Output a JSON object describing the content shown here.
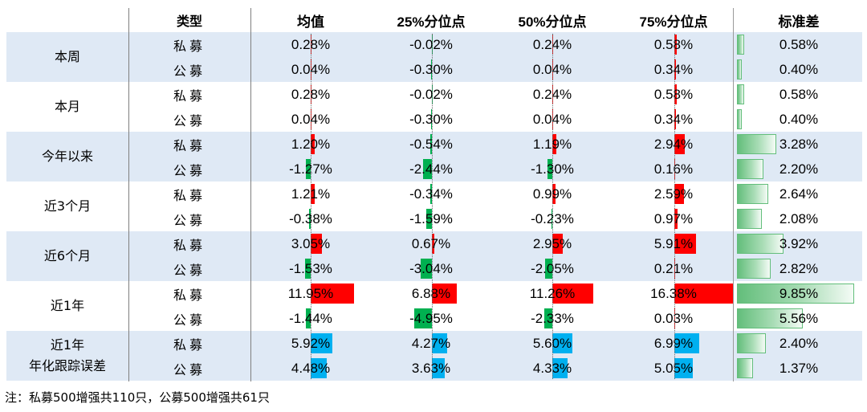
{
  "headers": {
    "type": "类型",
    "mean": "均值",
    "p25": "25%分位点",
    "p50": "50%分位点",
    "p75": "75%分位点",
    "std": "标准差"
  },
  "groups": [
    {
      "period": [
        "本周"
      ],
      "rows": [
        {
          "fund": "私募",
          "mean": "0.28%",
          "p25": "-0.02%",
          "p50": "0.24%",
          "p75": "0.58%",
          "std": "0.58%"
        },
        {
          "fund": "公募",
          "mean": "0.04%",
          "p25": "-0.30%",
          "p50": "0.04%",
          "p75": "0.34%",
          "std": "0.40%"
        }
      ]
    },
    {
      "period": [
        "本月"
      ],
      "rows": [
        {
          "fund": "私募",
          "mean": "0.28%",
          "p25": "-0.02%",
          "p50": "0.24%",
          "p75": "0.58%",
          "std": "0.58%"
        },
        {
          "fund": "公募",
          "mean": "0.04%",
          "p25": "-0.30%",
          "p50": "0.04%",
          "p75": "0.34%",
          "std": "0.40%"
        }
      ]
    },
    {
      "period": [
        "今年以来"
      ],
      "rows": [
        {
          "fund": "私募",
          "mean": "1.20%",
          "p25": "-0.54%",
          "p50": "1.19%",
          "p75": "2.94%",
          "std": "3.28%"
        },
        {
          "fund": "公募",
          "mean": "-1.27%",
          "p25": "-2.44%",
          "p50": "-1.30%",
          "p75": "0.16%",
          "std": "2.20%"
        }
      ]
    },
    {
      "period": [
        "近3个月"
      ],
      "rows": [
        {
          "fund": "私募",
          "mean": "1.21%",
          "p25": "-0.34%",
          "p50": "0.99%",
          "p75": "2.59%",
          "std": "2.64%"
        },
        {
          "fund": "公募",
          "mean": "-0.38%",
          "p25": "-1.59%",
          "p50": "-0.23%",
          "p75": "0.97%",
          "std": "2.08%"
        }
      ]
    },
    {
      "period": [
        "近6个月"
      ],
      "rows": [
        {
          "fund": "私募",
          "mean": "3.05%",
          "p25": "0.67%",
          "p50": "2.95%",
          "p75": "5.91%",
          "std": "3.92%"
        },
        {
          "fund": "公募",
          "mean": "-1.53%",
          "p25": "-3.04%",
          "p50": "-2.05%",
          "p75": "0.21%",
          "std": "2.82%"
        }
      ]
    },
    {
      "period": [
        "近1年"
      ],
      "rows": [
        {
          "fund": "私募",
          "mean": "11.95%",
          "p25": "6.88%",
          "p50": "11.26%",
          "p75": "16.38%",
          "std": "9.85%"
        },
        {
          "fund": "公募",
          "mean": "-1.44%",
          "p25": "-4.95%",
          "p50": "-2.33%",
          "p75": "0.03%",
          "std": "5.56%"
        }
      ]
    },
    {
      "period": [
        "近1年",
        "年化跟踪误差"
      ],
      "rows": [
        {
          "fund": "私募",
          "mean": "5.92%",
          "p25": "4.27%",
          "p50": "5.60%",
          "p75": "6.99%",
          "std": "2.40%"
        },
        {
          "fund": "公募",
          "mean": "4.48%",
          "p25": "3.63%",
          "p50": "4.33%",
          "p75": "5.05%",
          "std": "1.37%"
        }
      ]
    }
  ],
  "note": "注：私募500增强共110只，公募500增强共61只"
}
